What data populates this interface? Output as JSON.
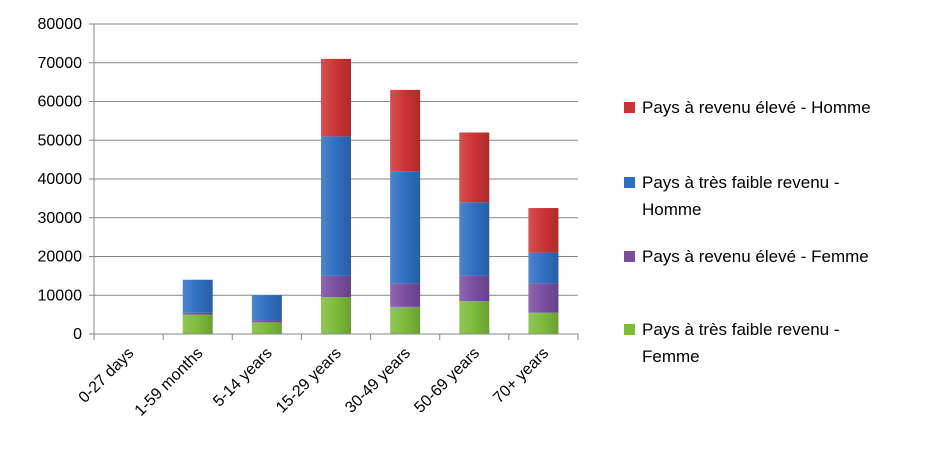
{
  "chart_data": {
    "type": "bar",
    "stacked": true,
    "categories": [
      "0-27 days",
      "1-59 months",
      "5-14 years",
      "15-29 years",
      "30-49 years",
      "50-69 years",
      "70+ years"
    ],
    "series": [
      {
        "name": "Pays à très faible revenu - Femme",
        "color": "#7dbb3a",
        "values": [
          0,
          5000,
          3000,
          9500,
          7000,
          8500,
          5500
        ]
      },
      {
        "name": "Pays à revenu élevé - Femme",
        "color": "#7a4ea0",
        "values": [
          0,
          500,
          500,
          5500,
          6000,
          6500,
          7500
        ]
      },
      {
        "name": "Pays à très faible revenu - Homme",
        "color": "#2f6fc2",
        "values": [
          0,
          8500,
          6500,
          36000,
          29000,
          19000,
          8000
        ]
      },
      {
        "name": "Pays à revenu élevé - Homme",
        "color": "#cc3333",
        "values": [
          0,
          0,
          0,
          20000,
          21000,
          18000,
          11500
        ]
      }
    ],
    "yticks": [
      0,
      10000,
      20000,
      30000,
      40000,
      50000,
      60000,
      70000,
      80000
    ],
    "ylim": [
      0,
      80000
    ],
    "grid": true,
    "legend_position": "right",
    "legend": [
      {
        "line1": "Pays à revenu élevé - Homme",
        "line2": "",
        "color": "#cc3333"
      },
      {
        "line1": "Pays à très faible revenu -",
        "line2": "Homme",
        "color": "#2f6fc2"
      },
      {
        "line1": "Pays à revenu élevé - Femme",
        "line2": "",
        "color": "#7a4ea0"
      },
      {
        "line1": "Pays à très faible revenu -",
        "line2": "Femme",
        "color": "#7dbb3a"
      }
    ]
  }
}
